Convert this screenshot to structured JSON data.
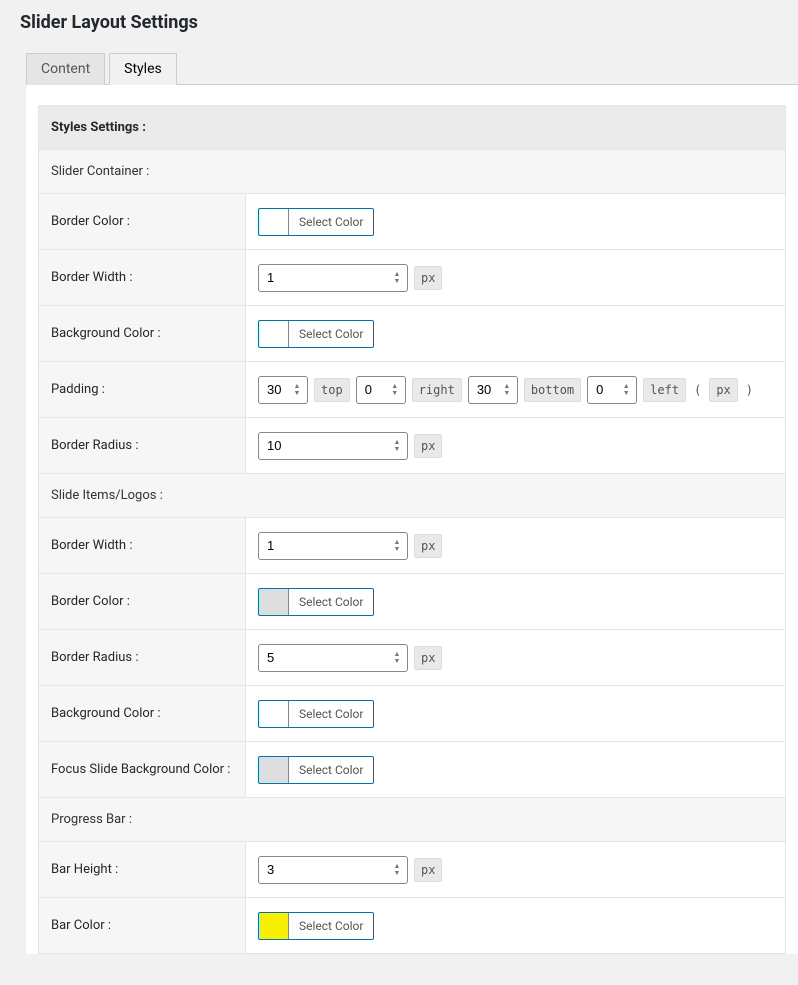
{
  "page": {
    "title": "Slider Layout Settings"
  },
  "tabs": {
    "content": "Content",
    "styles": "Styles",
    "active": "styles"
  },
  "header": {
    "styles_settings": "Styles Settings :"
  },
  "sections": {
    "slider_container": "Slider Container :",
    "slide_items": "Slide Items/Logos :",
    "progress_bar": "Progress Bar :"
  },
  "labels": {
    "border_color": "Border Color :",
    "border_width": "Border Width :",
    "background_color": "Background Color :",
    "padding": "Padding :",
    "border_radius": "Border Radius :",
    "focus_bg": "Focus Slide Background Color :",
    "bar_height": "Bar Height :",
    "bar_color": "Bar Color :",
    "select_color": "Select Color",
    "px": "px",
    "top": "top",
    "right": "right",
    "bottom": "bottom",
    "left": "left",
    "paren_open": "(",
    "paren_close": ")"
  },
  "values": {
    "container": {
      "border_color": "#dddddd",
      "border_width": "1",
      "background_color": "#ffffff",
      "padding_top": "30",
      "padding_right": "0",
      "padding_bottom": "30",
      "padding_left": "0",
      "border_radius": "10"
    },
    "items": {
      "border_width": "1",
      "border_color": "#dddddd",
      "border_radius": "5",
      "background_color": "#ffffff",
      "focus_bg": "#dddddd"
    },
    "progress": {
      "bar_height": "3",
      "bar_color": "#f8f000"
    }
  },
  "colors": {
    "picker_border": "#0073aa"
  }
}
